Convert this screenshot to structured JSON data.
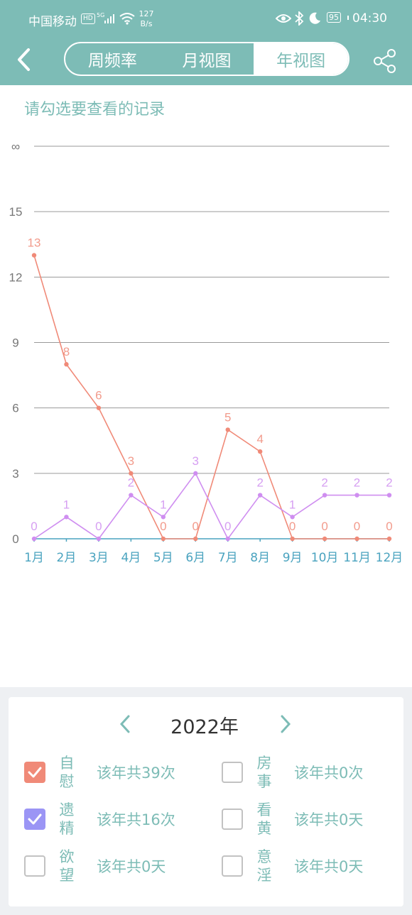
{
  "status_bar": {
    "carrier": "中国移动",
    "hd": "HD",
    "network": "5G",
    "speed_value": "127",
    "speed_unit": "B/s",
    "battery": "95",
    "time": "04:30"
  },
  "header": {
    "tabs": [
      {
        "label": "周频率",
        "active": false
      },
      {
        "label": "月视图",
        "active": false
      },
      {
        "label": "年视图",
        "active": true
      }
    ]
  },
  "hint": "请勾选要查看的记录",
  "chart_data": {
    "type": "line",
    "categories": [
      "1月",
      "2月",
      "3月",
      "4月",
      "5月",
      "6月",
      "7月",
      "8月",
      "9月",
      "10月",
      "11月",
      "12月"
    ],
    "y_ticks": [
      "0",
      "3",
      "6",
      "9",
      "12",
      "15",
      "∞"
    ],
    "ylim": [
      0,
      18
    ],
    "series": [
      {
        "name": "自慰",
        "color": "#f08a78",
        "values": [
          13,
          8,
          6,
          3,
          0,
          0,
          5,
          4,
          0,
          0,
          0,
          0
        ]
      },
      {
        "name": "遗精",
        "color": "#cf8ef0",
        "values": [
          0,
          1,
          0,
          2,
          1,
          3,
          0,
          2,
          1,
          2,
          2,
          2
        ]
      }
    ],
    "xaxis_color": "#4aa3bf",
    "grid": true
  },
  "year_selector": {
    "year_label": "2022年"
  },
  "records": [
    {
      "name": "自慰",
      "count": "该年共39次",
      "checked": true,
      "color": "#f08a78"
    },
    {
      "name": "房事",
      "count": "该年共0次",
      "checked": false,
      "color": "#c2c2c2"
    },
    {
      "name": "遗精",
      "count": "该年共16次",
      "checked": true,
      "color": "#9b95f5"
    },
    {
      "name": "看黄",
      "count": "该年共0天",
      "checked": false,
      "color": "#c2c2c2"
    },
    {
      "name": "欲望",
      "count": "该年共0天",
      "checked": false,
      "color": "#c2c2c2"
    },
    {
      "name": "意淫",
      "count": "该年共0天",
      "checked": false,
      "color": "#c2c2c2"
    }
  ],
  "theme": {
    "accent": "#7dbcb6"
  }
}
